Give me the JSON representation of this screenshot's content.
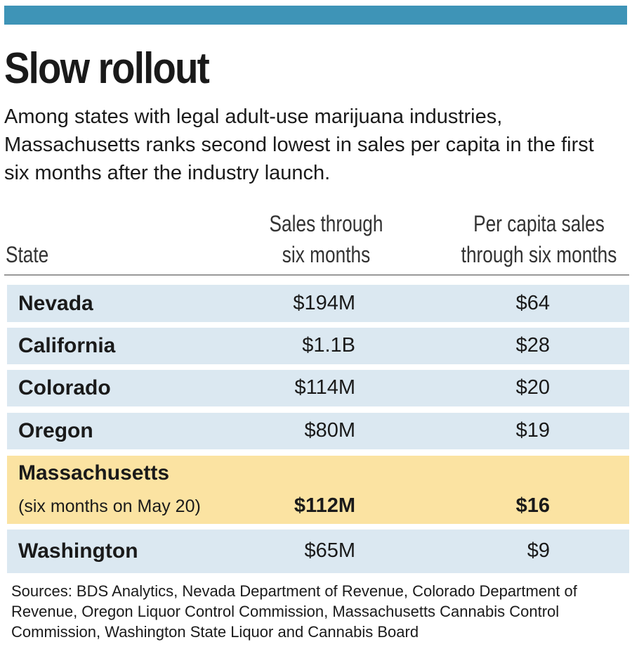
{
  "header": {
    "title": "Slow rollout",
    "subtitle": "Among states with legal adult-use marijuana industries, Massachusetts ranks second lowest in sales per capita in the first six months after the industry launch."
  },
  "chart_data": {
    "type": "table",
    "columns": [
      "State",
      "Sales through six months",
      "Per capita sales through six months"
    ],
    "rows": [
      {
        "state": "Nevada",
        "sales": "$194M",
        "per_capita": "$64"
      },
      {
        "state": "California",
        "sales": "$1.1B",
        "per_capita": "$28"
      },
      {
        "state": "Colorado",
        "sales": "$114M",
        "per_capita": "$20"
      },
      {
        "state": "Oregon",
        "sales": "$80M",
        "per_capita": "$19"
      },
      {
        "state": "Massachusetts",
        "note": "(six months on May 20)",
        "sales": "$112M",
        "per_capita": "$16",
        "highlight": true
      },
      {
        "state": "Washington",
        "sales": "$65M",
        "per_capita": "$9"
      }
    ]
  },
  "col_headers": {
    "state": "State",
    "sales_l1": "Sales through",
    "sales_l2": "six months",
    "pc_l1": "Per capita sales",
    "pc_l2": "through six months"
  },
  "sources": "Sources: BDS Analytics, Nevada Department of Revenue, Colorado Department of Revenue, Oregon Liquor Control Commission, Massachusetts Cannabis Control Commission, Washington State Liquor and Cannabis Board",
  "colors": {
    "bar": "#3e94b7",
    "row": "#dbe8f1",
    "highlight": "#fbe3a2"
  }
}
